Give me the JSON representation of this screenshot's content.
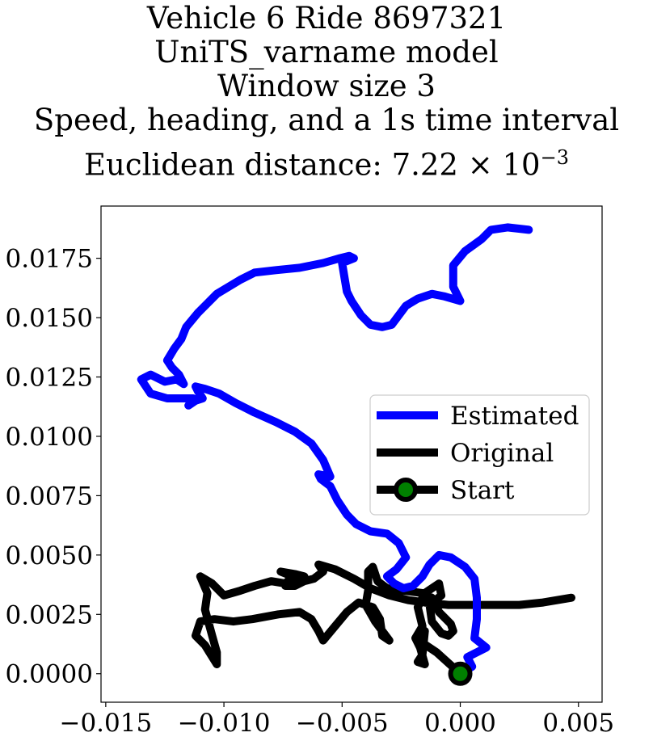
{
  "chart_data": {
    "type": "line",
    "title_lines": [
      "Vehicle 6 Ride 8697321",
      "UniTS_varname model",
      "Window size 3",
      "Speed, heading, and a 1s time interval"
    ],
    "title_last_prefix": "Euclidean distance: 7.22 × 10",
    "title_last_exponent": "−3",
    "xlabel": "",
    "ylabel": "",
    "xlim": [
      -0.0152,
      0.006
    ],
    "ylim": [
      -0.0012,
      0.0197
    ],
    "xticks": [
      {
        "v": -0.015,
        "label": "−0.015"
      },
      {
        "v": -0.01,
        "label": "−0.010"
      },
      {
        "v": -0.005,
        "label": "−0.005"
      },
      {
        "v": 0.0,
        "label": "0.000"
      },
      {
        "v": 0.005,
        "label": "0.005"
      }
    ],
    "yticks": [
      {
        "v": 0.0,
        "label": "0.0000"
      },
      {
        "v": 0.0025,
        "label": "0.0025"
      },
      {
        "v": 0.005,
        "label": "0.0050"
      },
      {
        "v": 0.0075,
        "label": "0.0075"
      },
      {
        "v": 0.01,
        "label": "0.0100"
      },
      {
        "v": 0.0125,
        "label": "0.0125"
      },
      {
        "v": 0.015,
        "label": "0.0150"
      },
      {
        "v": 0.0175,
        "label": "0.0175"
      }
    ],
    "grid": false,
    "legend_position": "center-right",
    "series": [
      {
        "name": "Estimated",
        "color": "#0000ff",
        "points": [
          [
            0.0,
            0.0
          ],
          [
            0.0005,
            0.0003
          ],
          [
            0.0003,
            0.0007
          ],
          [
            0.0011,
            0.0011
          ],
          [
            0.0006,
            0.0015
          ],
          [
            0.0007,
            0.0023
          ],
          [
            0.0007,
            0.0032
          ],
          [
            0.0006,
            0.004
          ],
          [
            0.0002,
            0.0045
          ],
          [
            -0.0004,
            0.0049
          ],
          [
            -0.0009,
            0.005
          ],
          [
            -0.0013,
            0.0046
          ],
          [
            -0.0016,
            0.0041
          ],
          [
            -0.002,
            0.0037
          ],
          [
            -0.0024,
            0.0036
          ],
          [
            -0.0028,
            0.0038
          ],
          [
            -0.0031,
            0.0041
          ],
          [
            -0.0027,
            0.0044
          ],
          [
            -0.0023,
            0.0049
          ],
          [
            -0.0026,
            0.0055
          ],
          [
            -0.0031,
            0.0059
          ],
          [
            -0.0038,
            0.006
          ],
          [
            -0.0044,
            0.0063
          ],
          [
            -0.0048,
            0.0067
          ],
          [
            -0.0052,
            0.0073
          ],
          [
            -0.0055,
            0.0079
          ],
          [
            -0.0059,
            0.0082
          ],
          [
            -0.006,
            0.0084
          ],
          [
            -0.0055,
            0.0083
          ],
          [
            -0.0058,
            0.009
          ],
          [
            -0.0063,
            0.0097
          ],
          [
            -0.007,
            0.0102
          ],
          [
            -0.0078,
            0.0106
          ],
          [
            -0.0087,
            0.011
          ],
          [
            -0.0095,
            0.0114
          ],
          [
            -0.0102,
            0.0118
          ],
          [
            -0.0108,
            0.012
          ],
          [
            -0.0112,
            0.0121
          ],
          [
            -0.0111,
            0.0119
          ],
          [
            -0.0109,
            0.0116
          ],
          [
            -0.0112,
            0.0115
          ],
          [
            -0.0115,
            0.0113
          ],
          [
            -0.0113,
            0.0116
          ],
          [
            -0.0117,
            0.0116
          ],
          [
            -0.0124,
            0.0116
          ],
          [
            -0.0131,
            0.0118
          ],
          [
            -0.0135,
            0.0124
          ],
          [
            -0.0131,
            0.0126
          ],
          [
            -0.0125,
            0.0123
          ],
          [
            -0.012,
            0.0124
          ],
          [
            -0.0117,
            0.0122
          ],
          [
            -0.0119,
            0.0126
          ],
          [
            -0.0122,
            0.0129
          ],
          [
            -0.0124,
            0.0132
          ],
          [
            -0.0121,
            0.0137
          ],
          [
            -0.0118,
            0.0141
          ],
          [
            -0.0116,
            0.0146
          ],
          [
            -0.0111,
            0.0152
          ],
          [
            -0.0103,
            0.016
          ],
          [
            -0.0093,
            0.0166
          ],
          [
            -0.0087,
            0.0169
          ],
          [
            -0.0078,
            0.017
          ],
          [
            -0.0068,
            0.0171
          ],
          [
            -0.0058,
            0.0173
          ],
          [
            -0.0051,
            0.0175
          ],
          [
            -0.0047,
            0.0176
          ],
          [
            -0.0045,
            0.0175
          ],
          [
            -0.005,
            0.0173
          ],
          [
            -0.0049,
            0.0167
          ],
          [
            -0.0048,
            0.0161
          ],
          [
            -0.0046,
            0.0157
          ],
          [
            -0.0042,
            0.0151
          ],
          [
            -0.0038,
            0.0147
          ],
          [
            -0.0033,
            0.0146
          ],
          [
            -0.0029,
            0.0147
          ],
          [
            -0.0026,
            0.0151
          ],
          [
            -0.0023,
            0.0155
          ],
          [
            -0.0018,
            0.0158
          ],
          [
            -0.0012,
            0.016
          ],
          [
            -0.0007,
            0.0159
          ],
          [
            0.0,
            0.0157
          ],
          [
            -0.0003,
            0.0163
          ],
          [
            -0.0003,
            0.0172
          ],
          [
            0.0002,
            0.0178
          ],
          [
            0.0009,
            0.0183
          ],
          [
            0.0013,
            0.0187
          ],
          [
            0.002,
            0.0188
          ],
          [
            0.0029,
            0.0187
          ]
        ]
      },
      {
        "name": "Original",
        "color": "#000000",
        "points": [
          [
            0.0,
            0.0
          ],
          [
            -0.001,
            0.0009
          ],
          [
            -0.0016,
            0.0013
          ],
          [
            -0.0017,
            0.0016
          ],
          [
            -0.0015,
            0.0018
          ],
          [
            -0.0016,
            0.0008
          ],
          [
            -0.0018,
            0.0005
          ],
          [
            -0.0015,
            0.0004
          ],
          [
            -0.0017,
            0.0011
          ],
          [
            -0.0019,
            0.0015
          ],
          [
            -0.0016,
            0.002
          ],
          [
            -0.0018,
            0.0028
          ],
          [
            -0.0015,
            0.0034
          ],
          [
            -0.0009,
            0.0038
          ],
          [
            -0.0008,
            0.0033
          ],
          [
            -0.0013,
            0.0029
          ],
          [
            -0.0012,
            0.0022
          ],
          [
            -0.0008,
            0.0017
          ],
          [
            -0.0005,
            0.0016
          ],
          [
            -0.0003,
            0.0018
          ],
          [
            -0.0004,
            0.0021
          ],
          [
            -0.0009,
            0.0026
          ],
          [
            -0.0012,
            0.0032
          ],
          [
            -0.0016,
            0.0034
          ],
          [
            -0.0024,
            0.0035
          ],
          [
            -0.0031,
            0.0036
          ],
          [
            -0.0035,
            0.0039
          ],
          [
            -0.0037,
            0.0045
          ],
          [
            -0.0039,
            0.0043
          ],
          [
            -0.0039,
            0.0035
          ],
          [
            -0.004,
            0.0029
          ],
          [
            -0.0036,
            0.0022
          ],
          [
            -0.003,
            0.0014
          ],
          [
            -0.0033,
            0.0016
          ],
          [
            -0.0034,
            0.0023
          ],
          [
            -0.0037,
            0.0028
          ],
          [
            -0.0043,
            0.003
          ],
          [
            -0.0048,
            0.0026
          ],
          [
            -0.0053,
            0.002
          ],
          [
            -0.0058,
            0.0014
          ],
          [
            -0.006,
            0.0018
          ],
          [
            -0.0063,
            0.0023
          ],
          [
            -0.0068,
            0.0026
          ],
          [
            -0.0077,
            0.0025
          ],
          [
            -0.0088,
            0.0023
          ],
          [
            -0.0096,
            0.0022
          ],
          [
            -0.0104,
            0.0023
          ],
          [
            -0.011,
            0.0022
          ],
          [
            -0.0112,
            0.0016
          ],
          [
            -0.0108,
            0.0012
          ],
          [
            -0.0103,
            0.0004
          ],
          [
            -0.0103,
            0.0009
          ],
          [
            -0.0105,
            0.0016
          ],
          [
            -0.0108,
            0.0027
          ],
          [
            -0.0107,
            0.0034
          ],
          [
            -0.011,
            0.0041
          ],
          [
            -0.0105,
            0.0038
          ],
          [
            -0.01,
            0.0033
          ],
          [
            -0.0093,
            0.0035
          ],
          [
            -0.0087,
            0.0037
          ],
          [
            -0.008,
            0.0039
          ],
          [
            -0.0074,
            0.0038
          ],
          [
            -0.0071,
            0.0041
          ],
          [
            -0.0076,
            0.0043
          ],
          [
            -0.007,
            0.0042
          ],
          [
            -0.0066,
            0.0041
          ],
          [
            -0.0072,
            0.004
          ],
          [
            -0.0074,
            0.0037
          ],
          [
            -0.007,
            0.0037
          ],
          [
            -0.0066,
            0.0039
          ],
          [
            -0.0062,
            0.004
          ],
          [
            -0.0058,
            0.0043
          ],
          [
            -0.006,
            0.0046
          ],
          [
            -0.0053,
            0.0044
          ],
          [
            -0.0045,
            0.004
          ],
          [
            -0.0038,
            0.0036
          ],
          [
            -0.003,
            0.0033
          ],
          [
            -0.0022,
            0.0031
          ],
          [
            -0.0015,
            0.003
          ],
          [
            -0.0005,
            0.0029
          ],
          [
            0.0005,
            0.0029
          ],
          [
            0.0015,
            0.0029
          ],
          [
            0.0025,
            0.0029
          ],
          [
            0.0035,
            0.003
          ],
          [
            0.0047,
            0.0032
          ]
        ]
      }
    ],
    "start_marker": {
      "label": "Start",
      "x": 0.0,
      "y": 0.0,
      "edge_color": "#000000",
      "face_color": "#008000"
    }
  }
}
